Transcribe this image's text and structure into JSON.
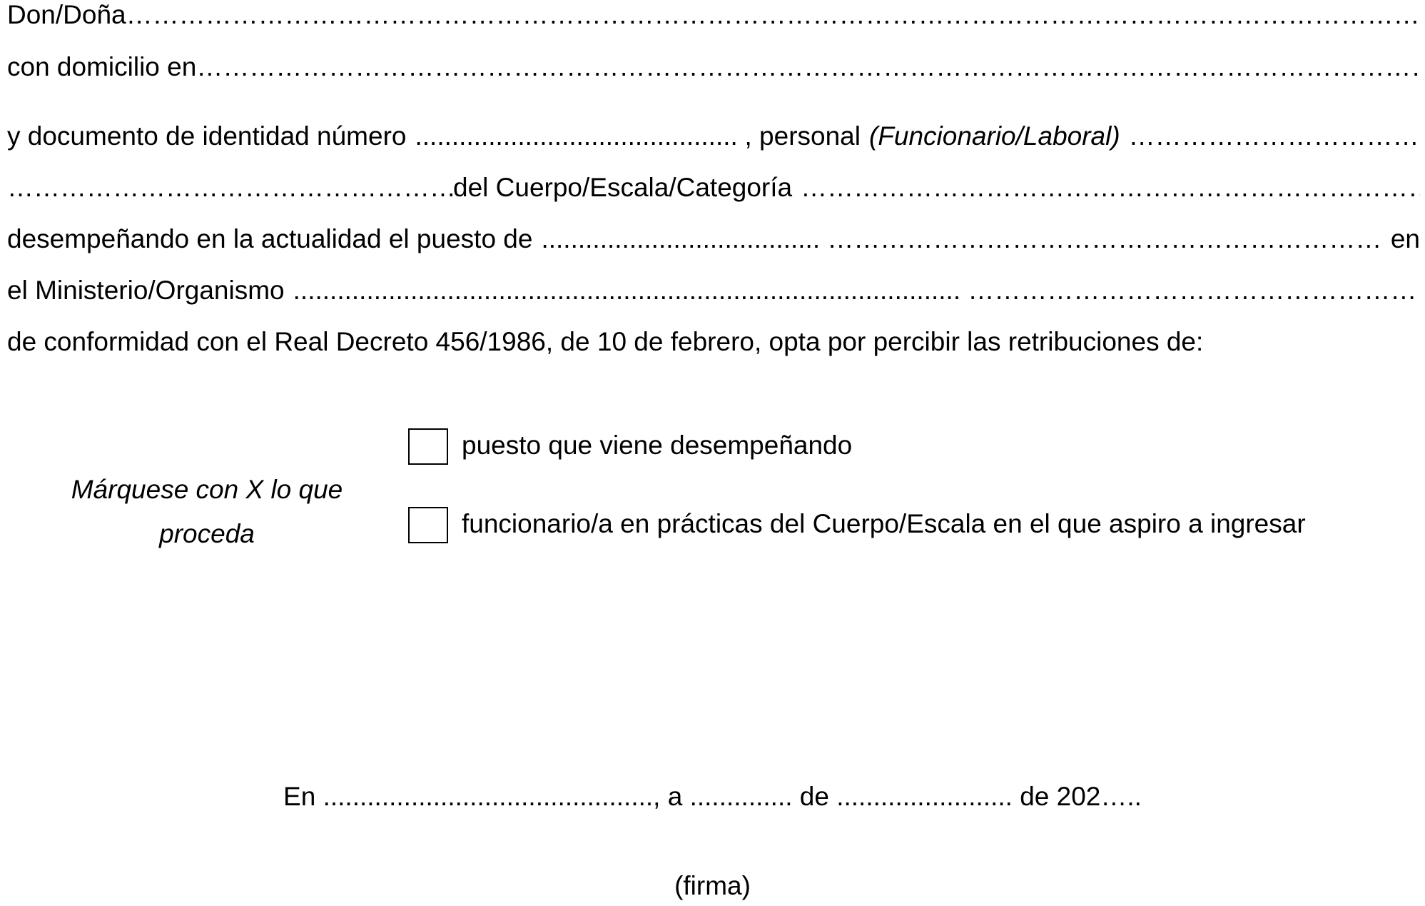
{
  "form": {
    "line1": {
      "label": "Don/Doña",
      "fill": "…………………………………………………………………………………………………………………………………………………………………………………………………………"
    },
    "line2": {
      "label": "con domicilio en",
      "fill": "…………………………………………………………………………………………………………………………………………………………………………………………………"
    },
    "line3": {
      "label": "y documento de identidad número",
      "fill1": "......................................................................",
      "mid": ", personal",
      "italic": "(Funcionario/Laboral)",
      "fill2": "………………………………………………"
    },
    "line4": {
      "fill1": "…………………………………………………………………",
      "label": "del Cuerpo/Escala/Categoría",
      "fill2": "………………………………………………………………………………............................."
    },
    "line5": {
      "label": "desempeñando en la actualidad el puesto de",
      "fill": "...................................... ………………………………………………………………………………………………………………",
      "end": "en"
    },
    "line6": {
      "label": "el Ministerio/Organismo",
      "fill": "........................................................................................... ……………………………………………………………………………………………………………………"
    },
    "line7": {
      "label": "de conformidad con el Real Decreto 456/1986, de 10 de febrero, opta por percibir las retribuciones de:"
    }
  },
  "options": {
    "instruction_line1": "Márquese con X lo que",
    "instruction_line2": "proceda",
    "items": [
      {
        "label": "puesto que viene desempeñando",
        "checked": false
      },
      {
        "label": "funcionario/a en prácticas del Cuerpo/Escala en el que aspiro a ingresar",
        "checked": false
      }
    ]
  },
  "signature": {
    "place_date": "En ............................................., a .............. de  ........................  de 202…..",
    "firma": "(firma)"
  }
}
